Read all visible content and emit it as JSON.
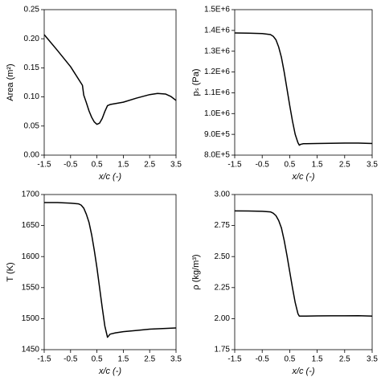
{
  "chart_data": [
    {
      "type": "line",
      "xlabel": "x/c (-)",
      "ylabel": "Area (m²)",
      "color": "#000000",
      "x": [
        -1.5,
        -1.0,
        -0.5,
        -0.05,
        0.0,
        0.1,
        0.2,
        0.3,
        0.4,
        0.5,
        0.6,
        0.7,
        0.8,
        0.9,
        1.0,
        1.5,
        2.0,
        2.5,
        2.8,
        3.1,
        3.3,
        3.5
      ],
      "values": [
        0.207,
        0.18,
        0.152,
        0.12,
        0.103,
        0.09,
        0.076,
        0.065,
        0.057,
        0.053,
        0.055,
        0.063,
        0.075,
        0.085,
        0.087,
        0.091,
        0.098,
        0.104,
        0.106,
        0.105,
        0.101,
        0.094
      ],
      "xlim": [
        -1.5,
        3.5
      ],
      "xticks": [
        -1.5,
        -0.5,
        0.5,
        1.5,
        2.5,
        3.5
      ],
      "ylim": [
        0,
        0.25
      ],
      "yticks": [
        {
          "value": 0,
          "label": "0.00"
        },
        {
          "value": 0.05,
          "label": "0.05"
        },
        {
          "value": 0.1,
          "label": "0.10"
        },
        {
          "value": 0.15,
          "label": "0.15"
        },
        {
          "value": 0.2,
          "label": "0.20"
        },
        {
          "value": 0.25,
          "label": "0.25"
        }
      ]
    },
    {
      "type": "line",
      "xlabel": "x/c (-)",
      "ylabel": "pₛ (Pa)",
      "color": "#000000",
      "x": [
        -1.5,
        -1.0,
        -0.5,
        -0.2,
        -0.1,
        0.0,
        0.1,
        0.2,
        0.3,
        0.4,
        0.5,
        0.6,
        0.7,
        0.8,
        0.85,
        0.9,
        1.0,
        1.5,
        2.0,
        2.5,
        3.0,
        3.5
      ],
      "values": [
        1388000,
        1387000,
        1385000,
        1380000,
        1372000,
        1355000,
        1320000,
        1270000,
        1200000,
        1120000,
        1040000,
        965000,
        900000,
        860000,
        848000,
        852000,
        855000,
        856000,
        857000,
        858000,
        858000,
        856000
      ],
      "xlim": [
        -1.5,
        3.5
      ],
      "xticks": [
        -1.5,
        -0.5,
        0.5,
        1.5,
        2.5,
        3.5
      ],
      "ylim": [
        800000,
        1500000
      ],
      "yticks": [
        {
          "value": 800000,
          "label": "8.0E+5"
        },
        {
          "value": 900000,
          "label": "9.0E+5"
        },
        {
          "value": 1000000,
          "label": "1.0E+6"
        },
        {
          "value": 1100000,
          "label": "1.1E+6"
        },
        {
          "value": 1200000,
          "label": "1.2E+6"
        },
        {
          "value": 1300000,
          "label": "1.3E+6"
        },
        {
          "value": 1400000,
          "label": "1.4E+6"
        },
        {
          "value": 1500000,
          "label": "1.5E+6"
        }
      ]
    },
    {
      "type": "line",
      "xlabel": "x/c (-)",
      "ylabel": "T (K)",
      "color": "#000000",
      "x": [
        -1.5,
        -1.0,
        -0.5,
        -0.2,
        -0.1,
        0.0,
        0.1,
        0.2,
        0.3,
        0.4,
        0.5,
        0.6,
        0.7,
        0.8,
        0.9,
        1.0,
        1.2,
        1.5,
        2.0,
        2.5,
        3.0,
        3.5
      ],
      "values": [
        1687,
        1687,
        1686,
        1685,
        1683,
        1678,
        1668,
        1655,
        1635,
        1610,
        1582,
        1550,
        1518,
        1488,
        1470,
        1475,
        1477,
        1479,
        1481,
        1483,
        1484,
        1485
      ],
      "xlim": [
        -1.5,
        3.5
      ],
      "xticks": [
        -1.5,
        -0.5,
        0.5,
        1.5,
        2.5,
        3.5
      ],
      "ylim": [
        1450,
        1700
      ],
      "yticks": [
        1450,
        1500,
        1550,
        1600,
        1650,
        1700
      ]
    },
    {
      "type": "line",
      "xlabel": "x/c (-)",
      "ylabel": "ρ (kg/m³)",
      "color": "#000000",
      "x": [
        -1.5,
        -1.0,
        -0.5,
        -0.2,
        -0.1,
        0.0,
        0.1,
        0.2,
        0.3,
        0.4,
        0.5,
        0.6,
        0.7,
        0.8,
        0.85,
        0.9,
        1.0,
        1.5,
        2.0,
        2.5,
        3.0,
        3.5
      ],
      "values": [
        2.868,
        2.867,
        2.865,
        2.86,
        2.85,
        2.83,
        2.79,
        2.73,
        2.63,
        2.51,
        2.38,
        2.25,
        2.13,
        2.04,
        2.02,
        2.02,
        2.02,
        2.022,
        2.023,
        2.023,
        2.024,
        2.02
      ],
      "xlim": [
        -1.5,
        3.5
      ],
      "xticks": [
        -1.5,
        -0.5,
        0.5,
        1.5,
        2.5,
        3.5
      ],
      "ylim": [
        1.75,
        3
      ],
      "yticks": [
        {
          "value": 1.75,
          "label": "1.75"
        },
        {
          "value": 2,
          "label": "2.00"
        },
        {
          "value": 2.25,
          "label": "2.25"
        },
        {
          "value": 2.5,
          "label": "2.50"
        },
        {
          "value": 2.75,
          "label": "2.75"
        },
        {
          "value": 3,
          "label": "3.00"
        }
      ]
    }
  ]
}
